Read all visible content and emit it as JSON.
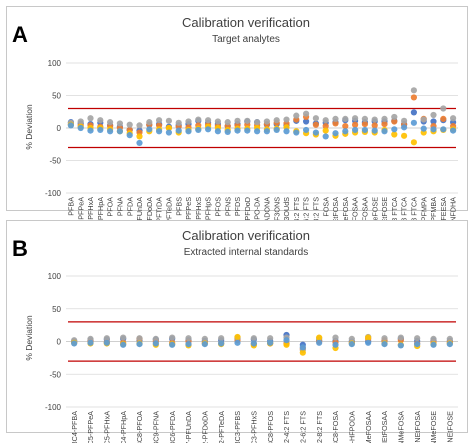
{
  "chart_data": [
    {
      "type": "scatter",
      "panel_label": "A",
      "title": "Calibration verification",
      "subtitle": "Target analytes",
      "ylabel": "% Deviation",
      "ylim": [
        -100,
        100
      ],
      "yticks": [
        100,
        50,
        0,
        -50,
        -100
      ],
      "grid": true,
      "limits": [
        30,
        -30
      ],
      "series_colors": [
        "#4472c4",
        "#ed7d31",
        "#a5a5a5",
        "#ffc000",
        "#5b9bd5"
      ],
      "categories": [
        "PFBA",
        "PFPeA",
        "PFHxA",
        "PFHpA",
        "PFOA",
        "PFNA",
        "PFDA",
        "PFUnDA",
        "PFDoDA",
        "PFTrDA",
        "PFTeDA",
        "PFBS",
        "PFPeS",
        "PFHxS",
        "PFHpS",
        "PFOS",
        "PFNS",
        "PFDS",
        "PFDoD",
        "HFPO-DA",
        "ADONA",
        "9ClPF3ONS",
        "11ClPF3OUdS",
        "4:2 FTS",
        "6:2 FTS",
        "8:2 FTS",
        "FOSA",
        "NEtFOSA",
        "NMeFOSA",
        "NEtFOSAA",
        "NMeFOSAA",
        "NMeFOSE",
        "NEtFOSE",
        "3:3 FTCA",
        "5:3 FTCA",
        "7:3 FTCA",
        "PFMPA",
        "PFMBA",
        "PFEESA",
        "NFDHA"
      ],
      "values": [
        [
          9,
          7,
          6,
          8,
          4,
          2,
          -3,
          -4,
          5,
          6,
          2,
          4,
          6,
          11,
          8,
          6,
          3,
          6,
          10,
          9,
          5,
          6,
          4,
          11,
          10,
          7,
          8,
          9,
          12,
          11,
          9,
          10,
          10,
          11,
          6,
          24,
          10,
          10,
          12,
          9
        ],
        [
          6,
          4,
          4,
          2,
          3,
          0,
          -3,
          -7,
          5,
          4,
          0,
          2,
          1,
          4,
          5,
          3,
          3,
          4,
          5,
          4,
          6,
          8,
          7,
          13,
          17,
          5,
          3,
          7,
          3,
          5,
          6,
          4,
          6,
          10,
          5,
          47,
          14,
          3,
          14,
          3
        ],
        [
          8,
          10,
          15,
          12,
          9,
          7,
          5,
          4,
          9,
          12,
          11,
          8,
          10,
          13,
          12,
          10,
          9,
          11,
          11,
          9,
          10,
          12,
          13,
          19,
          22,
          15,
          12,
          14,
          14,
          15,
          14,
          13,
          14,
          17,
          11,
          58,
          13,
          20,
          30,
          15
        ],
        [
          5,
          2,
          0,
          0,
          -2,
          -5,
          -8,
          -13,
          -5,
          -2,
          0,
          -7,
          -3,
          -1,
          2,
          0,
          -3,
          -1,
          -1,
          0,
          -2,
          -1,
          1,
          -5,
          -8,
          -10,
          -4,
          -12,
          -9,
          -7,
          -6,
          -7,
          -3,
          -10,
          -12,
          -22,
          -7,
          -5,
          -3,
          -2
        ],
        [
          4,
          0,
          -4,
          -3,
          -5,
          -5,
          -11,
          -23,
          -2,
          -5,
          -7,
          -4,
          -5,
          -3,
          -2,
          -5,
          -6,
          -4,
          -4,
          -5,
          -5,
          -3,
          -5,
          -7,
          -3,
          -7,
          -13,
          -8,
          -5,
          -3,
          -3,
          -4,
          -5,
          -2,
          1,
          8,
          -1,
          -2,
          -2,
          -4
        ]
      ]
    },
    {
      "type": "scatter",
      "panel_label": "B",
      "title": "Calibration verification",
      "subtitle": "Extracted internal standards",
      "ylabel": "% Deviation",
      "ylim": [
        -100,
        100
      ],
      "yticks": [
        100,
        50,
        0,
        -50,
        -100
      ],
      "grid": true,
      "limits": [
        30,
        -30
      ],
      "series_colors": [
        "#4472c4",
        "#ed7d31",
        "#a5a5a5",
        "#ffc000",
        "#5b9bd5"
      ],
      "categories": [
        "13C4-PFBA",
        "13C5-PFPeA",
        "13C5-PFHxA",
        "13C4-PFHpA",
        "13C8-PFOA",
        "13C9-PFNA",
        "13C6-PFDA",
        "13C7-PFUnDA",
        "13C2-PFDoDA",
        "13C2-PFTeDA",
        "13C3-PFBS",
        "13C3-PFHxS",
        "13C8-PFOS",
        "13C2-4:2 FTS",
        "13C2-6:2 FTS",
        "13C2-8:2 FTS",
        "13C8-FOSA",
        "13C3-HFPODA",
        "d3-NMeFOSAA",
        "d5-NEtFOSAA",
        "d3-NMeFOSA",
        "d5-NEtFOSA",
        "d7-NMeFOSE",
        "d9-NEtFOSE"
      ],
      "values": [
        [
          0,
          2,
          3,
          4,
          2,
          3,
          4,
          2,
          1,
          2,
          4,
          3,
          1,
          10,
          -5,
          2,
          1,
          0,
          0,
          1,
          4,
          1,
          2,
          1
        ],
        [
          -1,
          0,
          -1,
          -2,
          4,
          0,
          -2,
          0,
          -2,
          -3,
          2,
          -4,
          -3,
          -3,
          -11,
          0,
          -1,
          -2,
          4,
          2,
          2,
          -3,
          -1,
          -1
        ],
        [
          2,
          4,
          5,
          6,
          5,
          4,
          6,
          5,
          4,
          5,
          6,
          5,
          5,
          6,
          -13,
          5,
          6,
          4,
          7,
          5,
          6,
          5,
          4,
          4
        ],
        [
          -2,
          -3,
          -3,
          -4,
          -3,
          -5,
          -4,
          -6,
          -3,
          -4,
          7,
          -6,
          -3,
          -5,
          -17,
          6,
          -10,
          -3,
          6,
          -3,
          -5,
          -7,
          -4,
          -3
        ],
        [
          -3,
          -2,
          -2,
          -5,
          -4,
          -3,
          -5,
          -4,
          -4,
          -3,
          -2,
          -3,
          -2,
          2,
          -9,
          -2,
          -5,
          -4,
          -2,
          -4,
          -6,
          -4,
          -5,
          -4
        ]
      ]
    }
  ]
}
